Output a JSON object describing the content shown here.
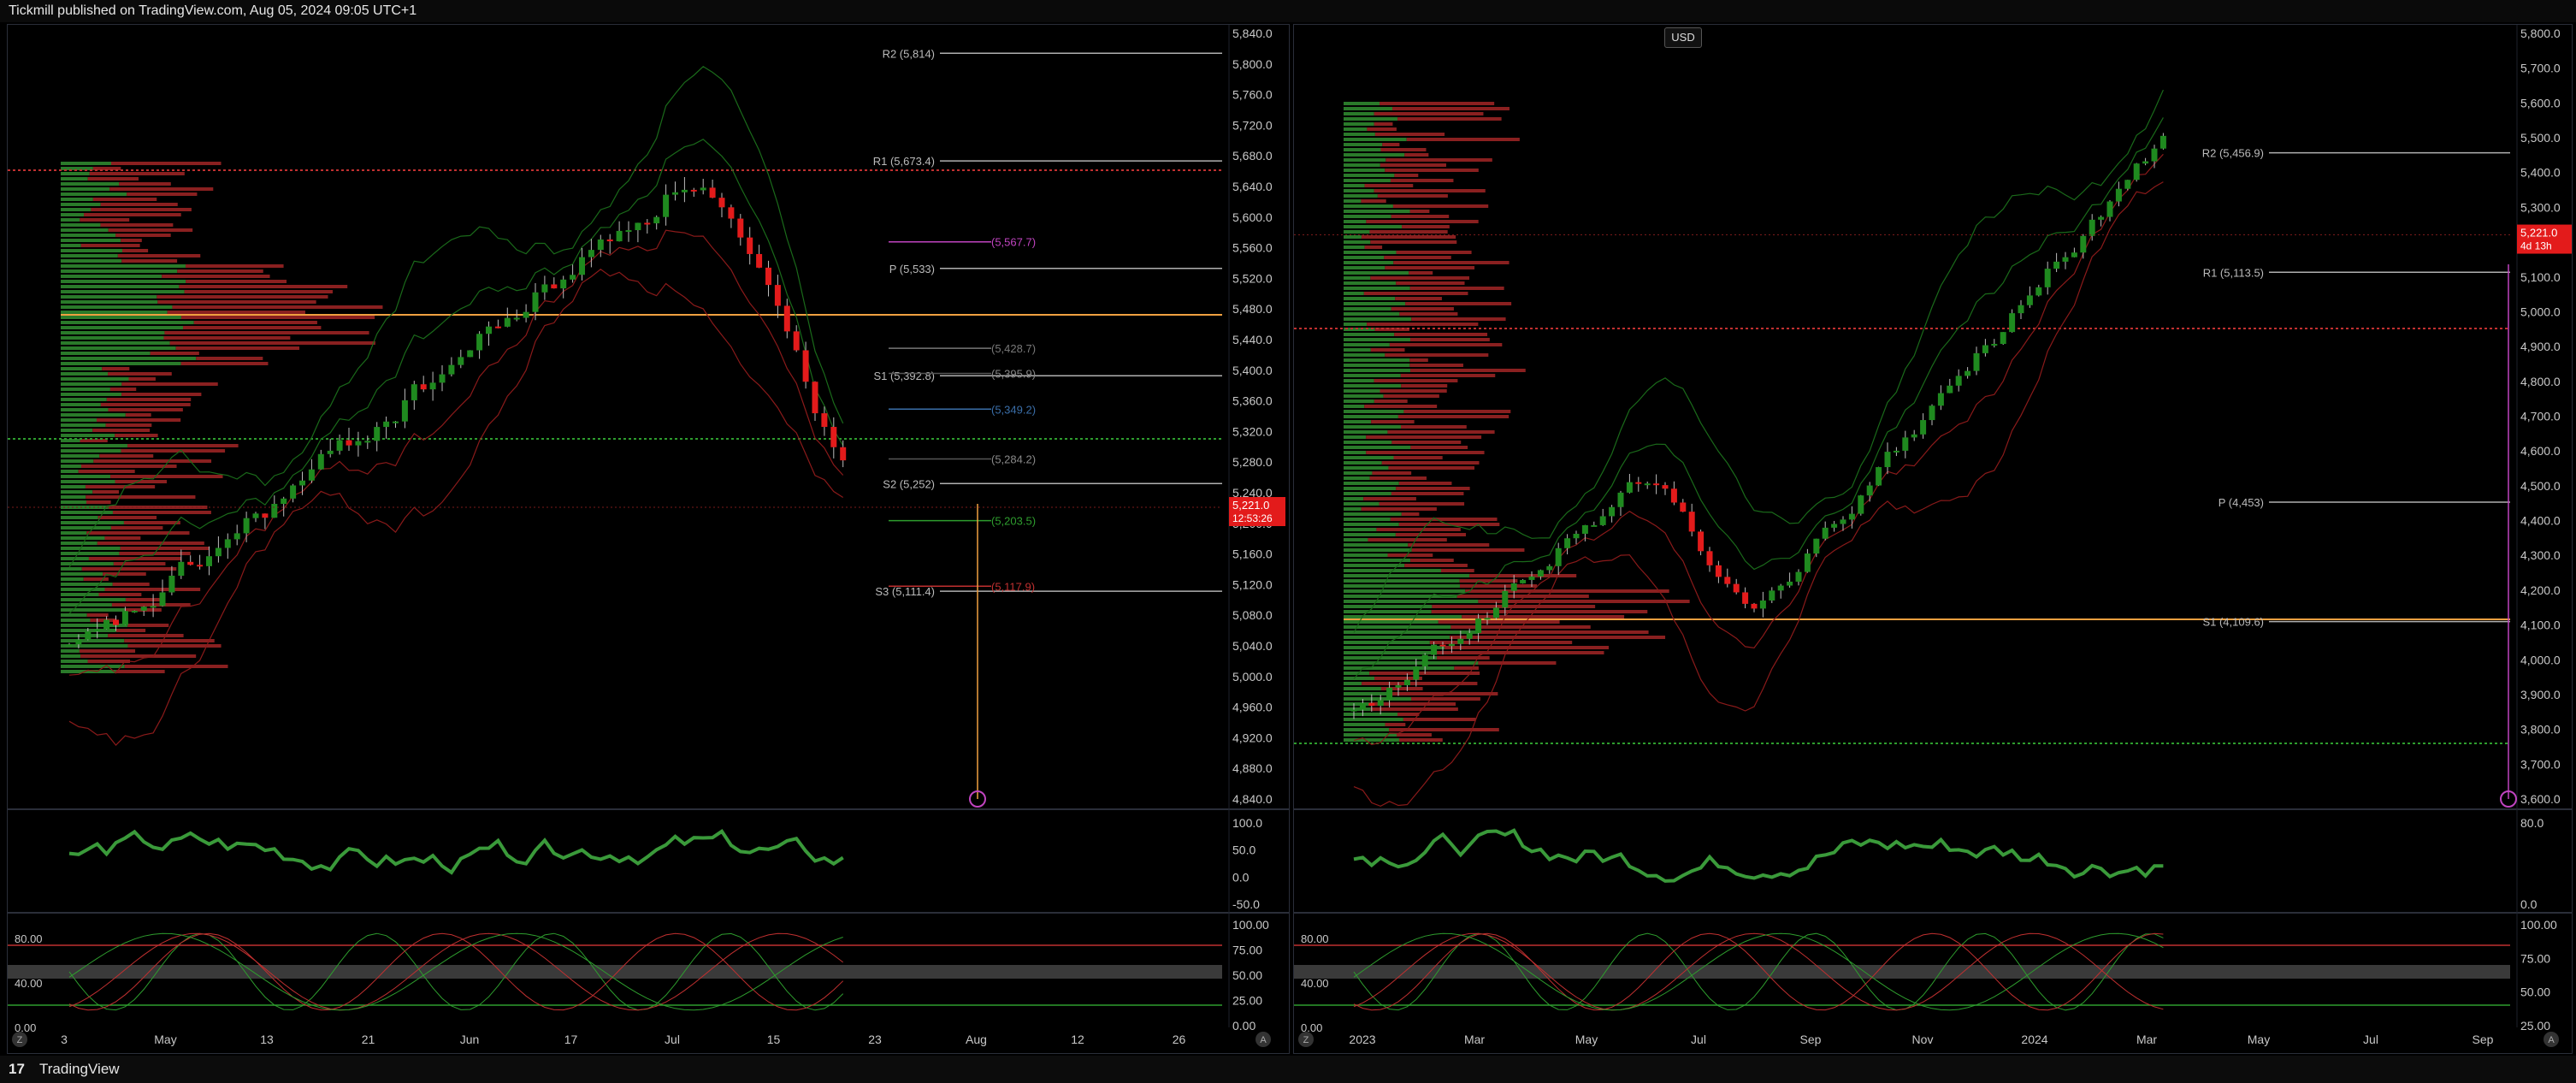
{
  "header": {
    "published": "Tickmill published on TradingView.com, Aug 05, 2024 09:05 UTC+1"
  },
  "footer": {
    "logo": "17",
    "brand": "TradingView"
  },
  "colors": {
    "up": "#1f8a1f",
    "down": "#e31b1b",
    "orange": "#f0a040",
    "magenta": "#c044c0",
    "pivot_line": "#b0b0b0"
  },
  "left_chart": {
    "price_axis": [
      "5,840.0",
      "5,800.0",
      "5,760.0",
      "5,720.0",
      "5,680.0",
      "5,640.0",
      "5,600.0",
      "5,560.0",
      "5,520.0",
      "5,480.0",
      "5,440.0",
      "5,400.0",
      "5,360.0",
      "5,320.0",
      "5,280.0",
      "5,240.0",
      "5,200.0",
      "5,160.0",
      "5,120.0",
      "5,080.0",
      "5,040.0",
      "5,000.0",
      "4,960.0",
      "4,920.0",
      "4,880.0",
      "4,840.0"
    ],
    "price_axis_range": [
      4840,
      5840
    ],
    "current_price": "5,221.0",
    "countdown": "12:53:26",
    "pivots": [
      {
        "label": "R2 (5,814)",
        "value": 5814
      },
      {
        "label": "R1 (5,673.4)",
        "value": 5673.4
      },
      {
        "label": "P (5,533)",
        "value": 5533
      },
      {
        "label": "S1 (5,392.8)",
        "value": 5392.8
      },
      {
        "label": "S2 (5,252)",
        "value": 5252
      },
      {
        "label": "S3 (5,111.4)",
        "value": 5111.4
      }
    ],
    "levels": [
      {
        "label": "(5,567.7)",
        "value": 5567.7,
        "color": "#c044c0"
      },
      {
        "label": "(5,428.7)",
        "value": 5428.7,
        "color": "#777"
      },
      {
        "label": "(5,395.9)",
        "value": 5395.9,
        "color": "#555"
      },
      {
        "label": "(5,349.2)",
        "value": 5349.2,
        "color": "#3a6ea8"
      },
      {
        "label": "(5,284.2)",
        "value": 5284.2,
        "color": "#555"
      },
      {
        "label": "(5,203.5)",
        "value": 5203.5,
        "color": "#2e9d2e"
      },
      {
        "label": "(5,117.9)",
        "value": 5117.9,
        "color": "#c03030"
      }
    ],
    "x_axis": [
      "3",
      "May",
      "13",
      "21",
      "Jun",
      "17",
      "Jul",
      "15",
      "23",
      "Aug",
      "12",
      "26"
    ],
    "osc1_axis": [
      "100.0",
      "50.0",
      "0.0",
      "-50.0"
    ],
    "osc2_axis": [
      "100.00",
      "75.00",
      "50.00",
      "25.00",
      "0.00"
    ],
    "osc2_left_axis": [
      "80.00",
      "40.00",
      "0.00"
    ],
    "corner_left": "Z",
    "corner_right": "A"
  },
  "right_chart": {
    "currency": "USD",
    "price_axis": [
      "5,800.0",
      "5,700.0",
      "5,600.0",
      "5,500.0",
      "5,400.0",
      "5,300.0",
      "5,200.0",
      "5,100.0",
      "5,000.0",
      "4,900.0",
      "4,800.0",
      "4,700.0",
      "4,600.0",
      "4,500.0",
      "4,400.0",
      "4,300.0",
      "4,200.0",
      "4,100.0",
      "4,000.0",
      "3,900.0",
      "3,800.0",
      "3,700.0",
      "3,600.0"
    ],
    "price_axis_range": [
      3600,
      5800
    ],
    "current_price": "5,221.0",
    "countdown": "4d 13h",
    "pivots": [
      {
        "label": "R2 (5,456.9)",
        "value": 5456.9
      },
      {
        "label": "R1 (5,113.5)",
        "value": 5113.5
      },
      {
        "label": "P (4,453)",
        "value": 4453
      },
      {
        "label": "S1 (4,109.6)",
        "value": 4109.6
      }
    ],
    "x_axis": [
      "2023",
      "Mar",
      "May",
      "Jul",
      "Sep",
      "Nov",
      "2024",
      "Mar",
      "May",
      "Jul",
      "Sep"
    ],
    "osc1_axis": [
      "80.0",
      "0.0"
    ],
    "osc2_axis": [
      "100.00",
      "75.00",
      "50.00",
      "25.00"
    ],
    "osc2_left_axis": [
      "80.00",
      "40.00",
      "0.00"
    ],
    "corner_left": "Z",
    "corner_right": "A"
  }
}
